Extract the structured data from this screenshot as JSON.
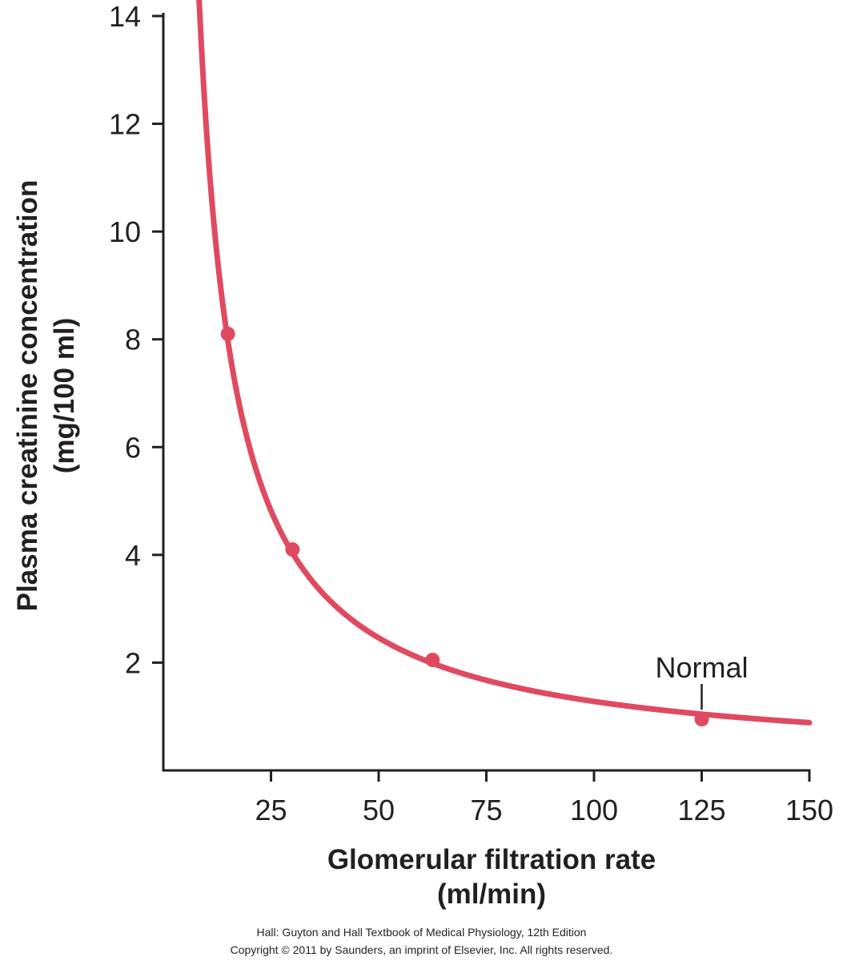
{
  "chart_data": {
    "type": "line",
    "xlabel": [
      "Glomerular filtration rate",
      "(ml/min)"
    ],
    "ylabel": [
      "Plasma creatinine concentration",
      "(mg/100 ml)"
    ],
    "xlim": [
      0,
      150
    ],
    "ylim": [
      0,
      14
    ],
    "x_ticks": [
      25,
      50,
      75,
      100,
      125,
      150
    ],
    "y_ticks": [
      2,
      4,
      6,
      8,
      10,
      12,
      14
    ],
    "grid": false,
    "line_color": "#e04a60",
    "curve_constant": 118,
    "curve_offset": 0.1,
    "curve_x_range": [
      5.5,
      150
    ],
    "points": [
      {
        "x": 15,
        "y": 8.1
      },
      {
        "x": 30,
        "y": 4.1
      },
      {
        "x": 62.5,
        "y": 2.05
      },
      {
        "x": 125,
        "y": 0.95
      }
    ],
    "annotation": {
      "text": "Normal",
      "x": 125,
      "y": 0.95
    }
  },
  "credit": {
    "line1": "Hall: Guyton and Hall Textbook of Medical Physiology, 12th Edition",
    "line2": "Copyright © 2011 by Saunders, an imprint of Elsevier, Inc. All rights reserved."
  }
}
